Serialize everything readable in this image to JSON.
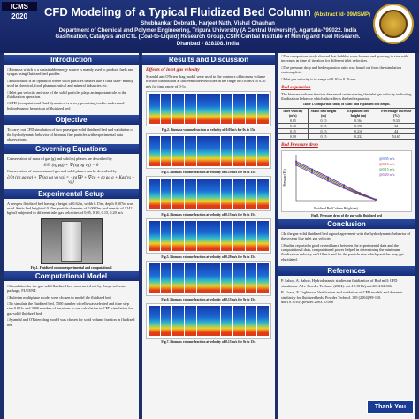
{
  "header": {
    "badge": "ICMS 2020",
    "title": "CFD Modeling of a Typical Fluidized Bed Column",
    "abstract_id": "(Abstract Id- 09MSMP)",
    "authors": "Shubhankar Debnath, Harjeet Nath, Vishal Chauhan",
    "aff1": "Department of Chemical and Polymer Engineering, Tripura University (A Central University), Agartala-799022. India",
    "aff2": "Gasification, Catalysis and CTL (Coal-to-Liquid) Research Group, CSIR-Central Institute of Mining and Fuel Research. Dhanbad - 828108. India"
  },
  "sections": {
    "introduction": "Introduction",
    "objective": "Objective",
    "governing": "Governing Equations",
    "experimental": "Experimental Setup",
    "computational": "Computational Model",
    "results": "Results and Discussion",
    "conclusion": "Conclusion",
    "references": "References"
  },
  "intro": [
    "Biomass which is a sustainable energy source is mainly used to produce fuels and syngas using fluidized bed gasifier.",
    "Fluidization is an operation where solid particles behave like a fluid state- mainly used in chemical, food, pharmaceutical and mineral industries etc.",
    "Inlet gas velocity and size of the solid particles plays an important role in the fluidization operation.",
    "CFD (computational fluid dynamics) is a very promising tool to understand hydrodynamic behaviour of fluidized bed"
  ],
  "objective_text": "To carry out CFD simulation of two phase gas-solid fluidized bed and validation of the hydrodynamic behavior of biomass fine particles with experimental data observations",
  "governing": {
    "line1": "Conservation of mass of gas (g) and solid (s) phases are described by",
    "eq1": "∂/∂t (εg ρg) + ∇·(εg ρg vg) = 0",
    "line2": "Conservation of momentum of gas and solid phases can be described by",
    "eq2": "∂/∂t (εg ρg vg) + ∇·(εg ρg vg vg) = −εg∇P + ∇·τg + εg ρg g + Kgs(vs − vg)"
  },
  "experimental_text": "A perspex fluidized bed having a height of 0.62m, width 0.15m, depth 0.007m was used. Static bed height of 0.15m particle diameter of 0.0003m and density of 1242 kg/m3 subjected to different inlet gas velocities of 0.05, 0.10, 0.15, 0.20 m/s",
  "fig1_caption": "Fig.1. Fluidized column experimental and computational",
  "computational": [
    "Simulation for the gas-solid fluidized bed was carried out by Ansys software package, FLUENT.",
    "Eulerian multiphase model were chosen to model the fluidized bed.",
    "To simulate the fluidized bed, 7500 number of cells was selected and time step size 0.001s and 2000 number of iterations to run calculation in CFD simulation for gas-solid fluidized bed.",
    "Syamlal and O'Brien drag model was chosen for solid volume fraction in fluidized bed"
  ],
  "results": {
    "subhead": "Effects of inlet gas velocity",
    "text": "Syamlal and O'Brien drag model were used to the contours of biomass volume fraction distribution at different inlet velocities in the range of 0.05 m/s to 0.20 m/s for time range of 0-1s",
    "figs": [
      "Fig.2. Biomass volume fraction at velocity of 0.05m/s for 0s to 15s.",
      "Fig.3. Biomass volume fraction at velocity of 0.10 m/s for 0s to 15s.",
      "Fig.4. Biomass volume fraction at velocity of 0.15 m/s for 0s to 15s.",
      "Fig.5. Biomass volume fraction at velocity of 0.20 m/s for 0s to 15s.",
      "Fig.6. Biomass volume fraction at velocity of 0.15 m/s for 0s to 15s.",
      "Fig.7. Biomass volume fraction at velocity of 0.15 m/s for 0s to 15s."
    ]
  },
  "col3": {
    "bullets": [
      "The comparison study showed that bubbles were formed and growing in size with increases in time of iteration for different inlet velocities.",
      "The pressure drop and bed expansion ratio was found out from the simulation contour plots.",
      "Inlet gas velocity is in range of 0.10 to 0.19 m/s."
    ],
    "bed_exp_head": "Bed expansion",
    "bed_exp_text": "The biomass volume fraction decreased on increasing the inlet gas velocity indicating fluidization behavior which also affects the bed expansion.",
    "table_caption": "Table 1.Comparison study of static and expanded bed height.",
    "table_headers": [
      "Inlet velocity (m/s)",
      "Static bed height (m)",
      "Expanded bed height (m)",
      "Percentage Increase (%)"
    ],
    "table_rows": [
      [
        "0.05",
        "0.15",
        "0.164",
        "9.33"
      ],
      [
        "0.10",
        "0.15",
        "0.198",
        "32"
      ],
      [
        "0.15",
        "0.15",
        "0.216",
        "44"
      ],
      [
        "0.20",
        "0.15",
        "0.232",
        "54.67"
      ]
    ],
    "pressure_head": "Bed Pressure drop",
    "fig8_caption": "Fig.8. Pressure drop of the gas-solid fluidized bed",
    "conclusion": [
      "In the gas-solid fluidized bed a good agreement with the hydrodynamic behavior of the system like inlet gas velocity.",
      "Studies reported a good resemblance between the experimental data and the computational data, computational power helped in determining the minimum fluidization velocity as 0.10 m/s and for the particle size which particles may get elucidated."
    ],
    "references": [
      "P. Sahoo, A. Sahoo, Hydrodynamic studies on fluidization of Rod mill: CFD simulation. Adv. Powder Technol. (2014). doi:10.1016/j.apt.2014.02.006",
      "R. Grace, F. Taghipour, Verification and validation of CFD models and dynamic similarity for fluidized beds. Powder Technol. 139 (2004) 99-110. doi:10.1016/j.powtec.2003.10.006"
    ],
    "thanks": "Thank You"
  },
  "chart_data": {
    "type": "line",
    "title": "",
    "xlabel": "Fluidized Bed Column Height (m)",
    "ylabel": "Pressure (Pa)",
    "series": [
      {
        "name": "@0.05 m/s",
        "values": [
          600,
          480,
          360,
          240,
          120,
          20
        ]
      },
      {
        "name": "@0.10 m/s",
        "values": [
          580,
          460,
          340,
          220,
          110,
          15
        ]
      },
      {
        "name": "@0.15 m/s",
        "values": [
          560,
          440,
          320,
          200,
          100,
          12
        ]
      },
      {
        "name": "@0.20 m/s",
        "values": [
          540,
          420,
          300,
          190,
          90,
          10
        ]
      }
    ],
    "x": [
      0,
      0.1,
      0.2,
      0.3,
      0.4,
      0.5
    ],
    "ylim": [
      0,
      700
    ]
  }
}
